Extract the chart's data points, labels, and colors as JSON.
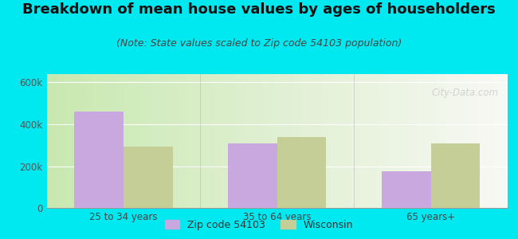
{
  "title": "Breakdown of mean house values by ages of householders",
  "subtitle": "(Note: State values scaled to Zip code 54103 population)",
  "categories": [
    "25 to 34 years",
    "35 to 64 years",
    "65 years+"
  ],
  "zip_values": [
    460000,
    310000,
    175000
  ],
  "state_values": [
    295000,
    340000,
    310000
  ],
  "zip_color": "#c9a8e0",
  "state_color": "#c5ce96",
  "background_outer": "#00e8f0",
  "grad_left": "#c8e8b0",
  "grad_right": "#f8f8f4",
  "ylim": [
    0,
    640000
  ],
  "yticks": [
    0,
    200000,
    400000,
    600000
  ],
  "ytick_labels": [
    "0",
    "200k",
    "400k",
    "600k"
  ],
  "legend_zip": "Zip code 54103",
  "legend_state": "Wisconsin",
  "bar_width": 0.32,
  "title_fontsize": 13,
  "subtitle_fontsize": 9,
  "axis_fontsize": 8.5,
  "legend_fontsize": 9,
  "watermark": "City-Data.com",
  "sep_color": "#aaaaaa",
  "grid_color": "#dddddd"
}
